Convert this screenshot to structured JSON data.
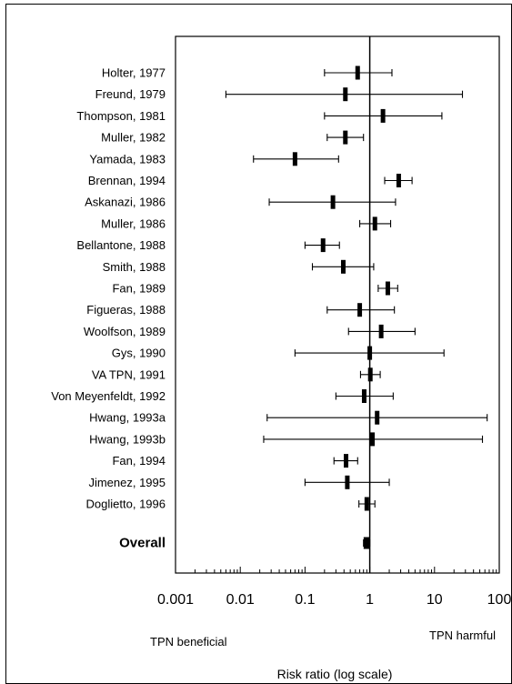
{
  "chart_data": {
    "type": "forest",
    "x_scale": "log",
    "xlim": [
      0.001,
      100
    ],
    "xticks": [
      0.001,
      0.01,
      0.1,
      1,
      10,
      100
    ],
    "xtick_labels": [
      "0.001",
      "0.01",
      "0.1",
      "1",
      "10",
      "100"
    ],
    "reference_line": 1,
    "xlabel": "Risk ratio (log scale)",
    "left_annotation": "TPN  beneficial",
    "right_annotation": "TPN  harmful",
    "studies": [
      {
        "label": "Holter, 1977",
        "rr": 0.65,
        "lo": 0.2,
        "hi": 2.2
      },
      {
        "label": "Freund, 1979",
        "rr": 0.42,
        "lo": 0.006,
        "hi": 27
      },
      {
        "label": "Thompson, 1981",
        "rr": 1.6,
        "lo": 0.2,
        "hi": 13
      },
      {
        "label": "Muller, 1982",
        "rr": 0.42,
        "lo": 0.22,
        "hi": 0.8
      },
      {
        "label": "Yamada, 1983",
        "rr": 0.07,
        "lo": 0.016,
        "hi": 0.33
      },
      {
        "label": "Brennan, 1994",
        "rr": 2.8,
        "lo": 1.7,
        "hi": 4.5
      },
      {
        "label": "Askanazi, 1986",
        "rr": 0.27,
        "lo": 0.028,
        "hi": 2.5
      },
      {
        "label": "Muller, 1986",
        "rr": 1.2,
        "lo": 0.7,
        "hi": 2.1
      },
      {
        "label": "Bellantone, 1988",
        "rr": 0.19,
        "lo": 0.1,
        "hi": 0.34
      },
      {
        "label": "Smith, 1988",
        "rr": 0.39,
        "lo": 0.13,
        "hi": 1.15
      },
      {
        "label": "Fan, 1989",
        "rr": 1.9,
        "lo": 1.35,
        "hi": 2.7
      },
      {
        "label": "Figueras, 1988",
        "rr": 0.7,
        "lo": 0.22,
        "hi": 2.4
      },
      {
        "label": "Woolfson, 1989",
        "rr": 1.5,
        "lo": 0.47,
        "hi": 5
      },
      {
        "label": "Gys, 1990",
        "rr": 1.0,
        "lo": 0.07,
        "hi": 14
      },
      {
        "label": "VA TPN, 1991",
        "rr": 1.02,
        "lo": 0.72,
        "hi": 1.45
      },
      {
        "label": "Von Meyenfeldt, 1992",
        "rr": 0.82,
        "lo": 0.3,
        "hi": 2.3
      },
      {
        "label": "Hwang, 1993a",
        "rr": 1.3,
        "lo": 0.026,
        "hi": 65
      },
      {
        "label": "Hwang, 1993b",
        "rr": 1.1,
        "lo": 0.023,
        "hi": 55
      },
      {
        "label": "Fan, 1994",
        "rr": 0.43,
        "lo": 0.28,
        "hi": 0.65
      },
      {
        "label": "Jimenez, 1995",
        "rr": 0.45,
        "lo": 0.1,
        "hi": 2
      },
      {
        "label": "Doglietto, 1996",
        "rr": 0.9,
        "lo": 0.68,
        "hi": 1.2
      }
    ],
    "overall": {
      "label": "Overall",
      "rr": 0.9,
      "lo": 0.8,
      "hi": 1.0
    }
  }
}
